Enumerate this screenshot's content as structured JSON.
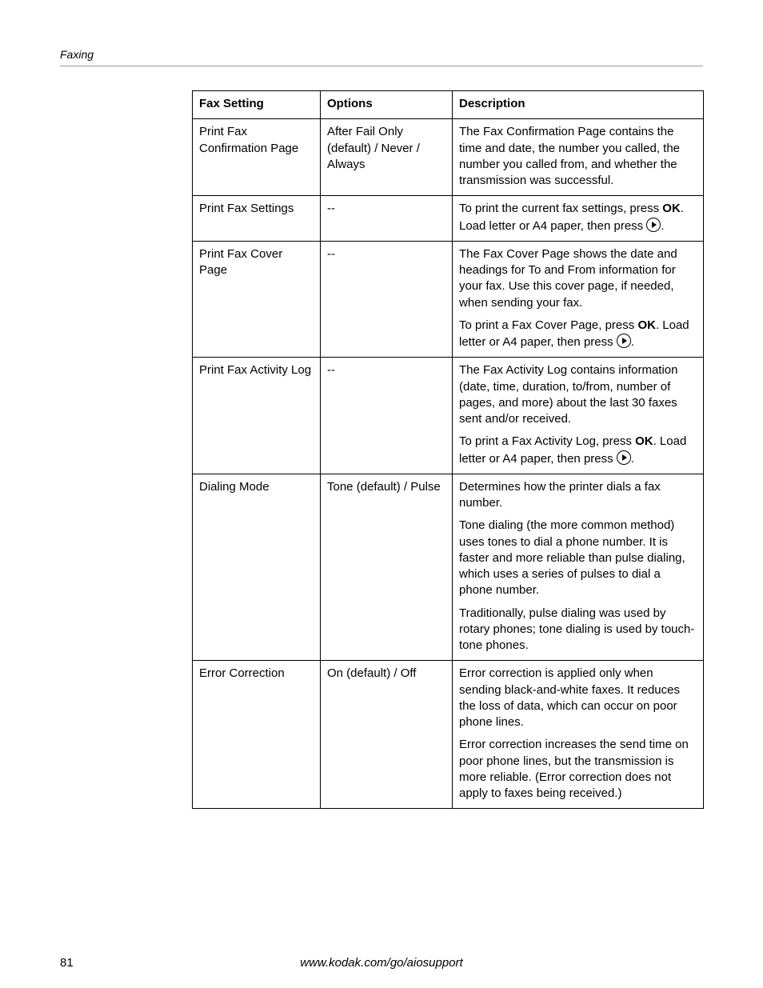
{
  "section": "Faxing",
  "footer": {
    "page": "81",
    "url": "www.kodak.com/go/aiosupport"
  },
  "table": {
    "headers": {
      "setting": "Fax Setting",
      "options": "Options",
      "description": "Description"
    },
    "rows": [
      {
        "setting": "Print Fax Confirmation Page",
        "options": "After Fail Only (default) / Never / Always",
        "desc": [
          {
            "text": "The Fax Confirmation Page contains the time and date, the number you called, the number you called from, and whether the transmission was successful."
          }
        ]
      },
      {
        "setting": "Print Fax Settings",
        "options": "--",
        "desc": [
          {
            "segments": [
              {
                "t": "To print the current fax settings, press "
              },
              {
                "t": "OK",
                "bold": true
              },
              {
                "t": ". Load letter or A4 paper, then press "
              },
              {
                "icon": "play"
              },
              {
                "t": "."
              }
            ]
          }
        ]
      },
      {
        "setting": "Print Fax Cover Page",
        "options": "--",
        "desc": [
          {
            "text": "The Fax Cover Page shows the date and headings for To and From information for your fax. Use this cover page, if needed, when sending your fax."
          },
          {
            "segments": [
              {
                "t": "To print a Fax Cover Page, press "
              },
              {
                "t": "OK",
                "bold": true
              },
              {
                "t": ". Load letter or A4 paper, then press "
              },
              {
                "icon": "play"
              },
              {
                "t": "."
              }
            ]
          }
        ]
      },
      {
        "setting": "Print Fax Activity Log",
        "options": "--",
        "desc": [
          {
            "text": "The Fax Activity Log contains information (date, time, duration, to/from, number of pages, and more) about the last 30 faxes sent and/or received."
          },
          {
            "segments": [
              {
                "t": "To print a Fax Activity Log, press "
              },
              {
                "t": "OK",
                "bold": true
              },
              {
                "t": ". Load letter or A4 paper, then press "
              },
              {
                "icon": "play"
              },
              {
                "t": "."
              }
            ]
          }
        ]
      },
      {
        "setting": "Dialing Mode",
        "options": "Tone (default) / Pulse",
        "desc": [
          {
            "text": "Determines how the printer dials a fax number."
          },
          {
            "text": "Tone dialing (the more common method) uses tones to dial a phone number. It is faster and more reliable than pulse dialing, which uses a series of pulses to dial a phone number."
          },
          {
            "text": "Traditionally, pulse dialing was used by rotary phones; tone dialing is used by touch-tone phones."
          }
        ]
      },
      {
        "setting": "Error Correction",
        "options": "On (default) / Off",
        "desc": [
          {
            "text": "Error correction is applied only when sending black-and-white faxes. It reduces the loss of data, which can occur on poor phone lines."
          },
          {
            "text": "Error correction increases the send time on poor phone lines, but the transmission is more reliable. (Error correction does not apply to faxes being received.)"
          }
        ]
      }
    ]
  }
}
